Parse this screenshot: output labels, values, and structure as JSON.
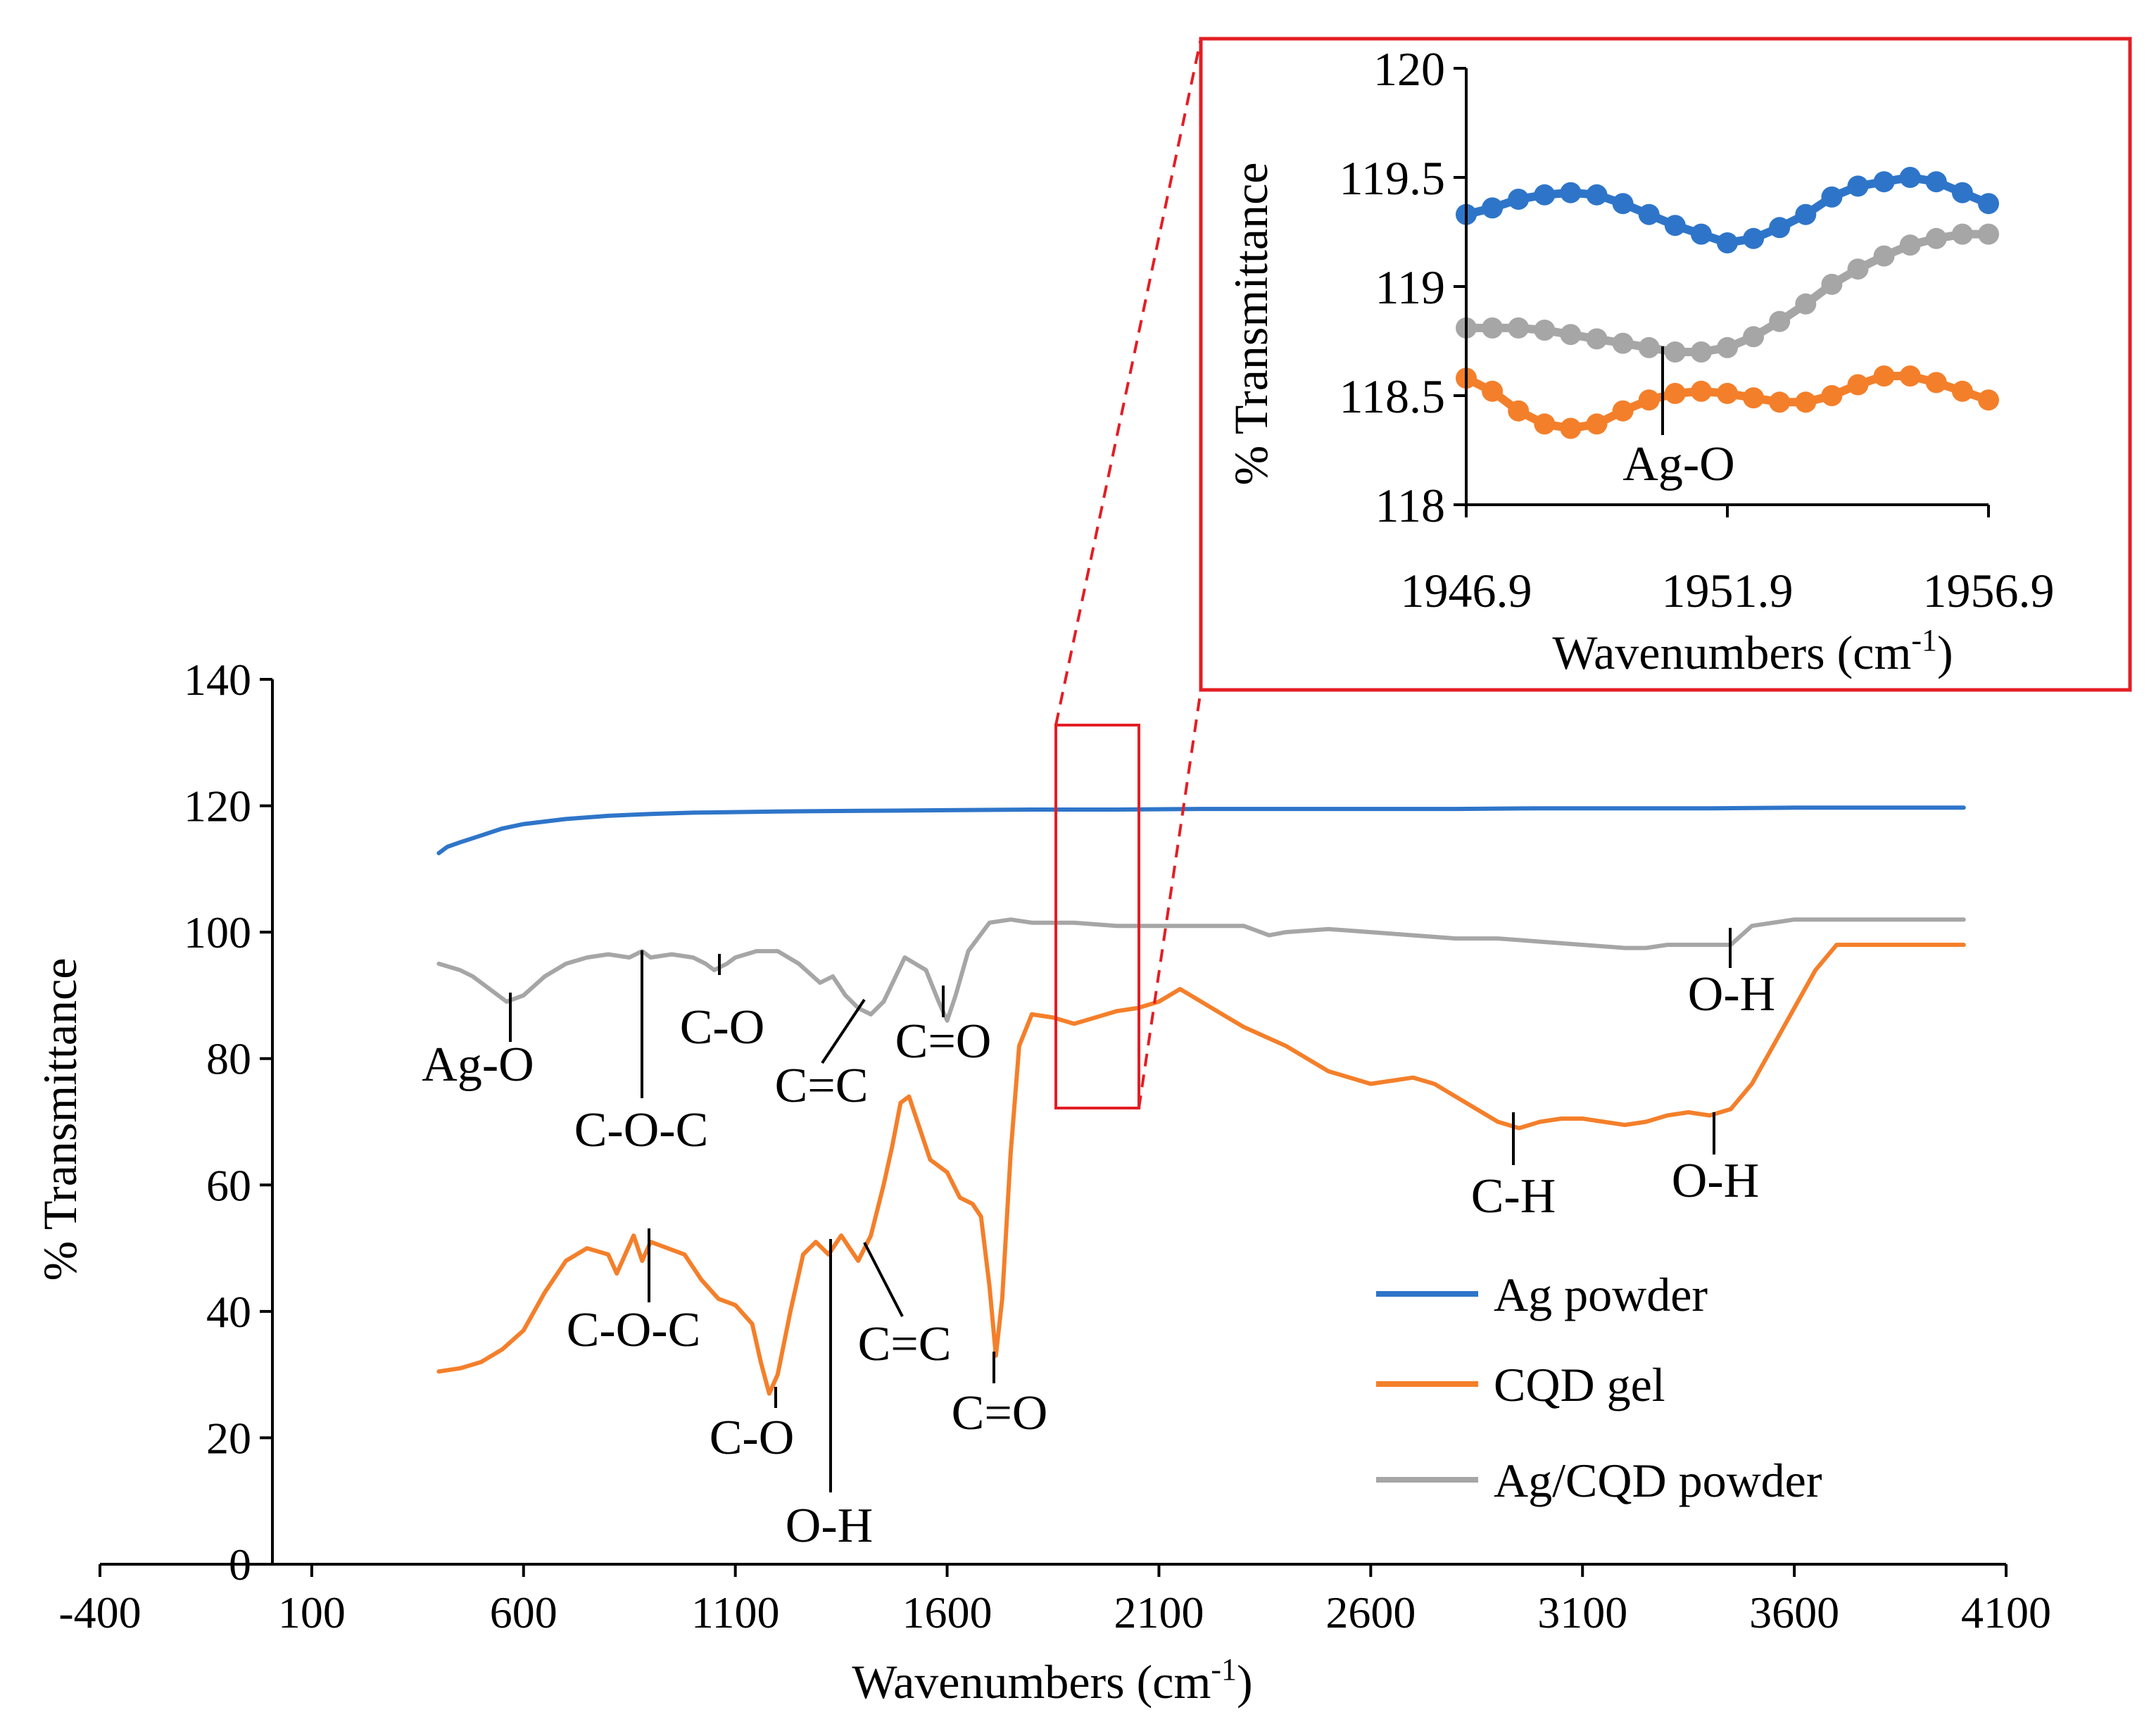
{
  "chart_data": [
    {
      "id": "main",
      "type": "line",
      "title": "",
      "xlabel": "Wavenumbers (cm",
      "xlabel_sup": "-1",
      "xlabel_close": ")",
      "ylabel": "% Transmittance",
      "xlim": [
        -400,
        4100
      ],
      "ylim": [
        0,
        140
      ],
      "x_ticks": [
        "-400",
        "100",
        "600",
        "1100",
        "1600",
        "2100",
        "2600",
        "3100",
        "3600",
        "4100"
      ],
      "x_tick_values": [
        -400,
        100,
        600,
        1100,
        1600,
        2100,
        2600,
        3100,
        3600,
        4100
      ],
      "y_ticks": [
        "0",
        "20",
        "40",
        "60",
        "80",
        "100",
        "120",
        "140"
      ],
      "y_tick_values": [
        0,
        20,
        40,
        60,
        80,
        100,
        120,
        140
      ],
      "grid": false,
      "legend_position": "bottom-right",
      "series": [
        {
          "name": "Ag powder",
          "color": "#2E75C9",
          "x": [
            400,
            420,
            450,
            500,
            550,
            600,
            700,
            800,
            900,
            1000,
            1200,
            1400,
            1600,
            1800,
            2000,
            2200,
            2400,
            2600,
            2800,
            3000,
            3200,
            3400,
            3600,
            3800,
            4000
          ],
          "y": [
            112.5,
            113.5,
            114.2,
            115.3,
            116.4,
            117.1,
            117.9,
            118.4,
            118.7,
            118.9,
            119.1,
            119.2,
            119.3,
            119.4,
            119.4,
            119.5,
            119.5,
            119.5,
            119.5,
            119.6,
            119.6,
            119.6,
            119.7,
            119.7,
            119.7
          ]
        },
        {
          "name": "CQD gel",
          "color": "#F47F2A",
          "x": [
            400,
            450,
            500,
            550,
            600,
            650,
            700,
            750,
            800,
            820,
            840,
            860,
            880,
            900,
            940,
            980,
            1020,
            1060,
            1100,
            1140,
            1160,
            1180,
            1200,
            1230,
            1260,
            1290,
            1320,
            1350,
            1390,
            1420,
            1450,
            1470,
            1490,
            1510,
            1530,
            1560,
            1600,
            1630,
            1660,
            1680,
            1700,
            1715,
            1730,
            1750,
            1770,
            1800,
            1850,
            1900,
            1950,
            2000,
            2050,
            2100,
            2150,
            2200,
            2250,
            2300,
            2400,
            2500,
            2600,
            2650,
            2700,
            2750,
            2800,
            2850,
            2900,
            2950,
            3000,
            3050,
            3100,
            3150,
            3200,
            3250,
            3300,
            3350,
            3400,
            3450,
            3500,
            3550,
            3600,
            3650,
            3700,
            3750,
            3800,
            3900,
            4000
          ],
          "y": [
            30.5,
            31,
            32,
            34,
            37,
            43,
            48,
            50,
            49,
            46,
            49,
            52,
            48,
            51,
            50,
            49,
            45,
            42,
            41,
            38,
            32,
            27,
            30,
            40,
            49,
            51,
            49,
            52,
            48,
            52,
            60,
            66,
            73,
            74,
            70,
            64,
            62,
            58,
            57,
            55,
            44,
            33,
            42,
            65,
            82,
            87,
            86.5,
            85.5,
            86.5,
            87.5,
            88,
            89,
            91,
            89,
            87,
            85,
            82,
            78,
            76,
            76.5,
            77,
            76,
            74,
            72,
            70,
            69,
            70,
            70.5,
            70.5,
            70,
            69.5,
            70,
            71,
            71.5,
            71,
            72,
            76,
            82,
            88,
            94,
            98,
            98,
            98,
            98,
            98
          ]
        },
        {
          "name": "Ag/CQD powder",
          "color": "#A6A6A6",
          "x": [
            400,
            450,
            480,
            520,
            560,
            600,
            650,
            700,
            750,
            800,
            850,
            880,
            900,
            950,
            1000,
            1030,
            1050,
            1080,
            1100,
            1150,
            1200,
            1250,
            1300,
            1330,
            1360,
            1390,
            1420,
            1450,
            1500,
            1550,
            1580,
            1600,
            1620,
            1650,
            1700,
            1750,
            1800,
            1900,
            2000,
            2100,
            2200,
            2300,
            2340,
            2360,
            2400,
            2500,
            2600,
            2700,
            2800,
            2900,
            3000,
            3100,
            3200,
            3250,
            3300,
            3400,
            3450,
            3500,
            3600,
            3700,
            3800,
            3900,
            4000
          ],
          "y": [
            95,
            94,
            93,
            91,
            89,
            90,
            93,
            95,
            96,
            96.5,
            96,
            97,
            96,
            96.5,
            96,
            95,
            94,
            95,
            96,
            97,
            97,
            95,
            92,
            93,
            90,
            88,
            87,
            89,
            96,
            94,
            89,
            86,
            90,
            97,
            101.5,
            102,
            101.5,
            101.5,
            101,
            101,
            101,
            101,
            100,
            99.5,
            100,
            100.5,
            100,
            99.5,
            99,
            99,
            98.5,
            98,
            97.5,
            97.5,
            98,
            98,
            98,
            101,
            102,
            102,
            102,
            102,
            102
          ]
        }
      ],
      "annotations": [
        {
          "text": "Ag-O",
          "series": "Ag/CQD powder"
        },
        {
          "text": "C-O-C",
          "series": "Ag/CQD powder"
        },
        {
          "text": "C-O",
          "series": "Ag/CQD powder"
        },
        {
          "text": "C=C",
          "series": "Ag/CQD powder"
        },
        {
          "text": "C=O",
          "series": "Ag/CQD powder"
        },
        {
          "text": "O-H",
          "series": "Ag/CQD powder"
        },
        {
          "text": "C-O-C",
          "series": "CQD gel"
        },
        {
          "text": "C-O",
          "series": "CQD gel"
        },
        {
          "text": "O-H",
          "series": "CQD gel"
        },
        {
          "text": "C=C",
          "series": "CQD gel"
        },
        {
          "text": "C=O",
          "series": "CQD gel"
        },
        {
          "text": "C-H",
          "series": "CQD gel"
        },
        {
          "text": "O-H",
          "series": "CQD gel"
        }
      ],
      "zoom_region": {
        "x": [
          1860,
          2060
        ],
        "y": [
          70,
          131
        ]
      }
    },
    {
      "id": "inset",
      "type": "scatter",
      "title": "",
      "xlabel": "Wavenumbers (cm",
      "xlabel_sup": "-1",
      "xlabel_close": ")",
      "ylabel": "% Transmittance",
      "xlim": [
        1946.9,
        1956.9
      ],
      "ylim": [
        118,
        120
      ],
      "x_ticks": [
        "1946.9",
        "1951.9",
        "1956.9"
      ],
      "x_tick_values": [
        1946.9,
        1951.9,
        1956.9
      ],
      "y_ticks": [
        "118",
        "118.5",
        "119",
        "119.5",
        "120"
      ],
      "y_tick_values": [
        118,
        118.5,
        119,
        119.5,
        120
      ],
      "grid": false,
      "series": [
        {
          "name": "Ag powder",
          "color": "#2E75C9",
          "x": [
            1946.9,
            1947.4,
            1947.9,
            1948.4,
            1948.9,
            1949.4,
            1949.9,
            1950.4,
            1950.9,
            1951.4,
            1951.9,
            1952.4,
            1952.9,
            1953.4,
            1953.9,
            1954.4,
            1954.9,
            1955.4,
            1955.9,
            1956.4,
            1956.9
          ],
          "y": [
            119.33,
            119.36,
            119.4,
            119.42,
            119.43,
            119.42,
            119.38,
            119.33,
            119.28,
            119.24,
            119.2,
            119.22,
            119.27,
            119.33,
            119.41,
            119.46,
            119.48,
            119.5,
            119.48,
            119.43,
            119.38
          ]
        },
        {
          "name": "Ag/CQD powder",
          "color": "#A6A6A6",
          "x": [
            1946.9,
            1947.4,
            1947.9,
            1948.4,
            1948.9,
            1949.4,
            1949.9,
            1950.4,
            1950.9,
            1951.4,
            1951.9,
            1952.4,
            1952.9,
            1953.4,
            1953.9,
            1954.4,
            1954.9,
            1955.4,
            1955.9,
            1956.4,
            1956.9
          ],
          "y": [
            118.81,
            118.81,
            118.81,
            118.8,
            118.78,
            118.76,
            118.74,
            118.72,
            118.7,
            118.7,
            118.72,
            118.77,
            118.84,
            118.92,
            119.01,
            119.08,
            119.14,
            119.19,
            119.22,
            119.24,
            119.24
          ]
        },
        {
          "name": "CQD gel",
          "color": "#F47F2A",
          "x": [
            1946.9,
            1947.4,
            1947.9,
            1948.4,
            1948.9,
            1949.4,
            1949.9,
            1950.4,
            1950.9,
            1951.4,
            1951.9,
            1952.4,
            1952.9,
            1953.4,
            1953.9,
            1954.4,
            1954.9,
            1955.4,
            1955.9,
            1956.4,
            1956.9
          ],
          "y": [
            118.58,
            118.52,
            118.43,
            118.37,
            118.35,
            118.37,
            118.43,
            118.48,
            118.51,
            118.52,
            118.51,
            118.49,
            118.47,
            118.47,
            118.5,
            118.55,
            118.59,
            118.59,
            118.56,
            118.52,
            118.48
          ]
        }
      ],
      "annotations": [
        {
          "text": "Ag-O"
        }
      ]
    }
  ],
  "colors": {
    "frame": "#E31E24",
    "dashed": "#E31E24",
    "axis": "#000000"
  }
}
